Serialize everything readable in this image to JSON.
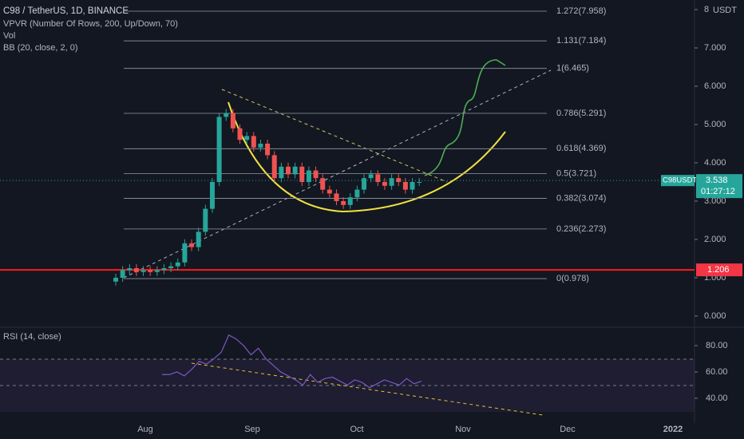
{
  "header": {
    "symbol": "C98 / TetherUS, 1D, BINANCE",
    "indicators": [
      "VPVR (Number Of Rows, 200, Up/Down, 70)",
      "Vol",
      "BB (20, close, 2, 0)"
    ]
  },
  "chart_data": {
    "type": "candlestick",
    "closes": [
      1.0,
      1.2,
      1.25,
      1.15,
      1.2,
      1.15,
      1.2,
      1.25,
      1.3,
      1.4,
      1.9,
      1.8,
      2.2,
      2.8,
      3.5,
      5.2,
      5.3,
      4.9,
      4.6,
      4.7,
      4.4,
      4.5,
      4.2,
      3.6,
      3.9,
      3.7,
      3.9,
      3.5,
      3.8,
      3.6,
      3.3,
      3.2,
      3.0,
      2.9,
      3.1,
      3.3,
      3.6,
      3.7,
      3.5,
      3.4,
      3.6,
      3.5,
      3.3,
      3.5,
      3.5
    ],
    "ylim": [
      -0.5,
      8.25
    ],
    "currency": "USDT",
    "yticks": [
      8,
      {
        "value": 7,
        "label": "7.000"
      },
      {
        "value": 6,
        "label": "6.000"
      },
      {
        "value": 5,
        "label": "5.000"
      },
      {
        "value": 4,
        "label": "4.000"
      },
      {
        "value": 3,
        "label": "3.000"
      },
      {
        "value": 2,
        "label": "2.000"
      },
      {
        "value": 1,
        "label": "1.000"
      },
      {
        "value": 0,
        "label": "0.000"
      }
    ],
    "fib_levels": [
      {
        "value": 7.958,
        "label": "1.272(7.958)"
      },
      {
        "value": 7.184,
        "label": "1.131(7.184)"
      },
      {
        "value": 6.465,
        "label": "1(6.465)"
      },
      {
        "value": 5.291,
        "label": "0.786(5.291)"
      },
      {
        "value": 4.369,
        "label": "0.618(4.369)"
      },
      {
        "value": 3.721,
        "label": "0.5(3.721)"
      },
      {
        "value": 3.074,
        "label": "0.382(3.074)"
      },
      {
        "value": 2.273,
        "label": "0.236(2.273)"
      },
      {
        "value": 0.978,
        "label": "0(0.978)"
      }
    ],
    "last_price": {
      "symbol": "C98USDT",
      "value": 3.538,
      "countdown": "01:27:12"
    },
    "marked_level": 1.206,
    "xaxis_labels": [
      "Aug",
      "Sep",
      "Oct",
      "Nov",
      "Dec",
      "2022"
    ],
    "rsi": {
      "title": "RSI (14, close)",
      "values": [
        58,
        58,
        60,
        57,
        62,
        68,
        66,
        70,
        75,
        88,
        85,
        80,
        73,
        78,
        70,
        65,
        60,
        57,
        54,
        50,
        58,
        52,
        55,
        56,
        53,
        50,
        54,
        52,
        48,
        51,
        54,
        52,
        50,
        55,
        51,
        53
      ],
      "ylim": [
        21.2,
        93.9
      ],
      "yticks": [
        {
          "value": 80,
          "label": "80.00"
        },
        {
          "value": 60,
          "label": "60.00"
        },
        {
          "value": 40,
          "label": "40.00"
        }
      ]
    }
  }
}
